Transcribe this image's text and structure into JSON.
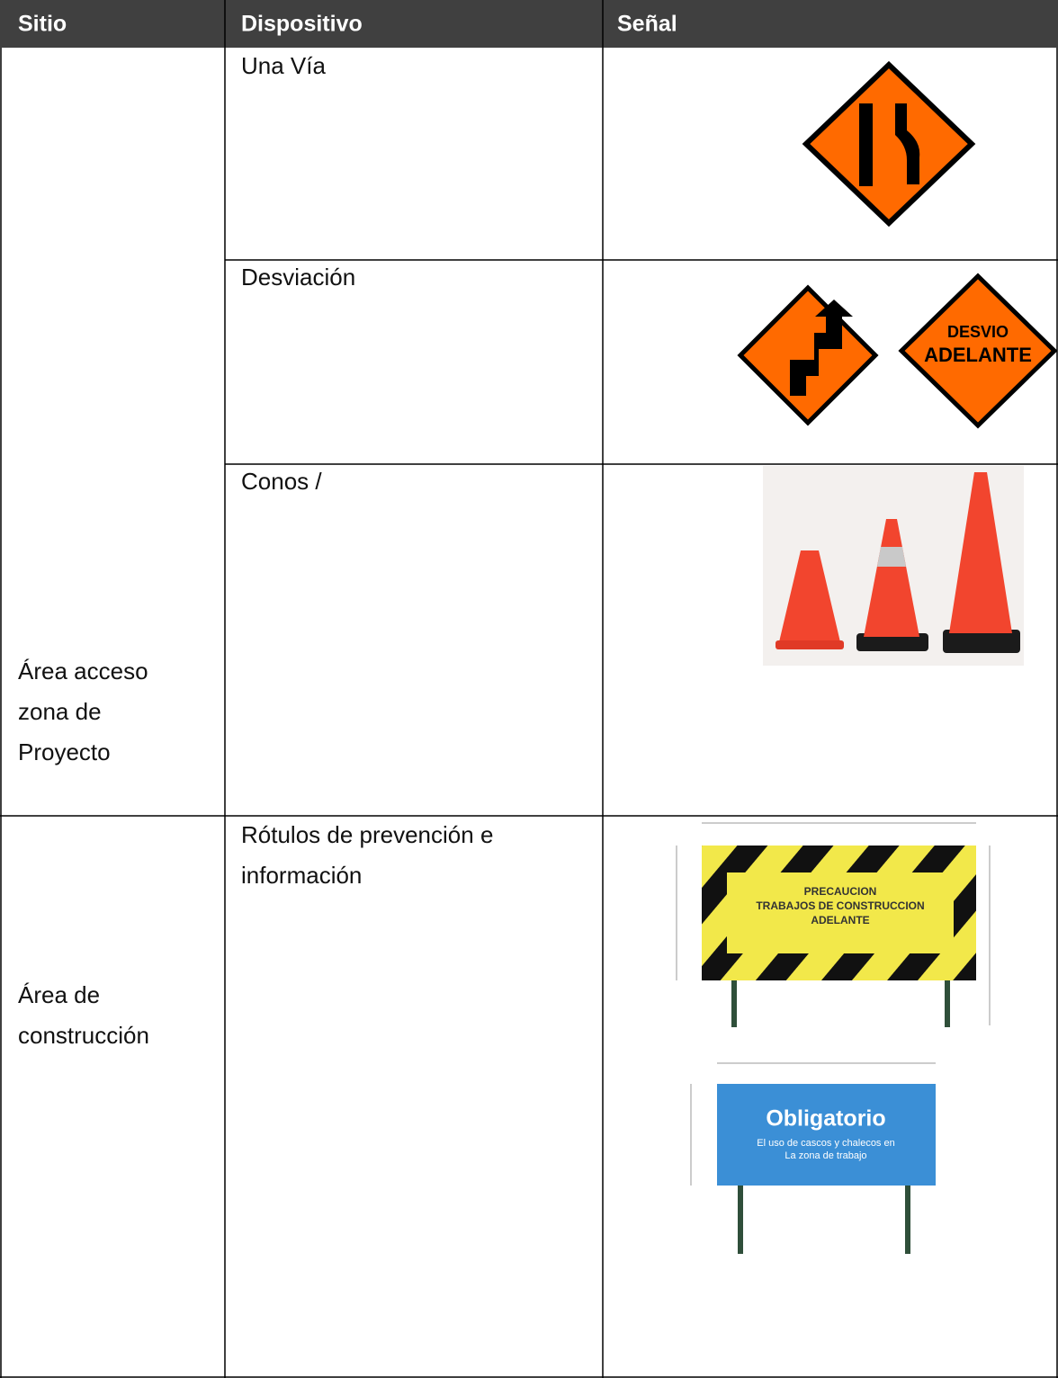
{
  "table": {
    "header": [
      "Sitio",
      "Dispositivo",
      "Señal"
    ],
    "rows": [
      {
        "sitio": [
          "Área acceso",
          "zona de",
          "Proyecto"
        ],
        "dispositivo": [
          "Una Vía"
        ]
      },
      {
        "dispositivo": [
          "Desviación"
        ]
      },
      {
        "dispositivo": [
          "Conos /"
        ]
      },
      {
        "sitio": [
          "Área de",
          "construcción"
        ],
        "dispositivo": [
          "Rótulos de prevención e",
          "información"
        ]
      }
    ]
  },
  "signs": {
    "desvio": [
      "DESVIO",
      "ADELANTE"
    ],
    "precaucion": [
      "PRECAUCION",
      "TRABAJOS DE CONSTRUCCION",
      "ADELANTE"
    ],
    "obligatorio": [
      "Obligatorio",
      "El uso de cascos y chalecos en",
      "La zona de trabajo"
    ]
  }
}
